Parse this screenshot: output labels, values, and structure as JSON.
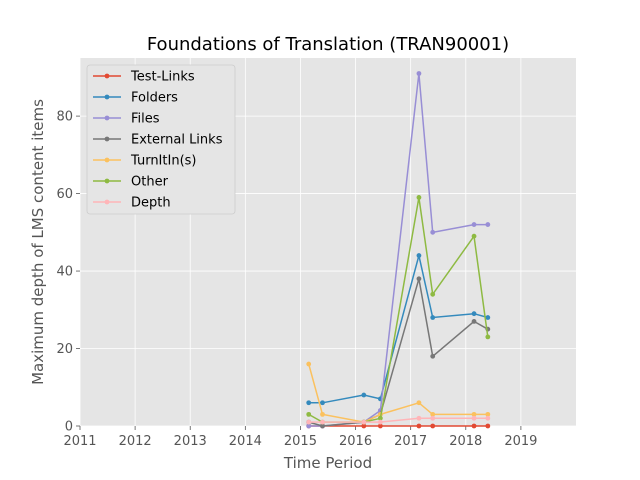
{
  "chart_data": {
    "type": "line",
    "title": "Foundations of Translation (TRAN90001)",
    "xlabel": "Time Period",
    "ylabel": "Maximum depth of LMS content items",
    "xlim": [
      2011,
      2020
    ],
    "ylim": [
      0,
      95
    ],
    "x_ticks": [
      "2011",
      "2012",
      "2013",
      "2014",
      "2015",
      "2016",
      "2017",
      "2018",
      "2019"
    ],
    "y_ticks": [
      "0",
      "20",
      "40",
      "60",
      "80"
    ],
    "grid": true,
    "legend_position": "upper-left",
    "series": [
      {
        "name": "Test-Links",
        "color": "#E24A33",
        "points": [
          [
            2015.15,
            0
          ],
          [
            2015.4,
            0
          ],
          [
            2016.15,
            0
          ],
          [
            2016.45,
            0
          ],
          [
            2017.15,
            0
          ],
          [
            2017.4,
            0
          ],
          [
            2018.15,
            0
          ],
          [
            2018.4,
            0
          ]
        ]
      },
      {
        "name": "Folders",
        "color": "#348ABD",
        "points": [
          [
            2015.15,
            6
          ],
          [
            2015.4,
            6
          ],
          [
            2016.15,
            8
          ],
          [
            2016.45,
            7
          ],
          [
            2017.15,
            44
          ],
          [
            2017.4,
            28
          ],
          [
            2018.15,
            29
          ],
          [
            2018.4,
            28
          ]
        ]
      },
      {
        "name": "Files",
        "color": "#988ED5",
        "points": [
          [
            2015.15,
            0
          ],
          [
            2015.4,
            0
          ],
          [
            2016.15,
            1
          ],
          [
            2016.45,
            4
          ],
          [
            2017.15,
            91
          ],
          [
            2017.4,
            50
          ],
          [
            2018.15,
            52
          ],
          [
            2018.4,
            52
          ]
        ]
      },
      {
        "name": "External Links",
        "color": "#777777",
        "points": [
          [
            2015.15,
            1
          ],
          [
            2015.4,
            0
          ],
          [
            2016.15,
            1
          ],
          [
            2016.45,
            3
          ],
          [
            2017.15,
            38
          ],
          [
            2017.4,
            18
          ],
          [
            2018.15,
            27
          ],
          [
            2018.4,
            25
          ]
        ]
      },
      {
        "name": "TurnItIn(s)",
        "color": "#FBC15E",
        "points": [
          [
            2015.15,
            16
          ],
          [
            2015.4,
            3
          ],
          [
            2016.15,
            1
          ],
          [
            2016.45,
            3
          ],
          [
            2017.15,
            6
          ],
          [
            2017.4,
            3
          ],
          [
            2018.15,
            3
          ],
          [
            2018.4,
            3
          ]
        ]
      },
      {
        "name": "Other",
        "color": "#8EBA42",
        "points": [
          [
            2015.15,
            3
          ],
          [
            2015.4,
            1
          ],
          [
            2016.15,
            1
          ],
          [
            2016.45,
            2
          ],
          [
            2017.15,
            59
          ],
          [
            2017.4,
            34
          ],
          [
            2018.15,
            49
          ],
          [
            2018.4,
            23
          ]
        ]
      },
      {
        "name": "Depth",
        "color": "#FFB5B8",
        "points": [
          [
            2015.15,
            1
          ],
          [
            2015.4,
            1
          ],
          [
            2016.15,
            1
          ],
          [
            2016.45,
            1
          ],
          [
            2017.15,
            2
          ],
          [
            2017.4,
            2
          ],
          [
            2018.15,
            2
          ],
          [
            2018.4,
            2
          ]
        ]
      }
    ]
  }
}
